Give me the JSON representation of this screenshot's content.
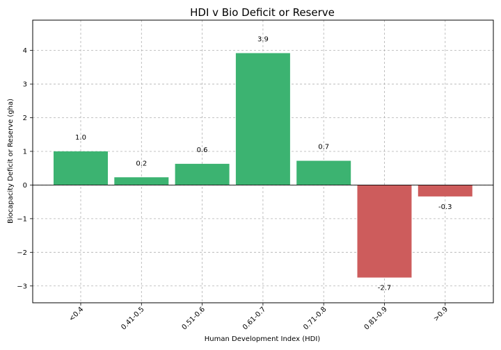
{
  "chart_data": {
    "type": "bar",
    "title": "HDI v Bio Deficit or Reserve",
    "xlabel": "Human Development Index (HDI)",
    "ylabel": "Biocapacity Deficit or Reserve (gha)",
    "categories": [
      "<0.4",
      "0.41-0.5",
      "0.51-0.6",
      "0.61-0.7",
      "0.71-0.8",
      "0.81-0.9",
      ">0.9"
    ],
    "values": [
      1.0,
      0.23,
      0.63,
      3.92,
      0.72,
      -2.75,
      -0.34
    ],
    "data_labels": [
      "1.0",
      "0.2",
      "0.6",
      "3.9",
      "0.7",
      "-2.7",
      "-0.3"
    ],
    "ylim": [
      -3.5,
      4.9
    ],
    "yticks": [
      -3,
      -2,
      -1,
      0,
      1,
      2,
      3,
      4
    ],
    "ytick_labels": [
      "−3",
      "−2",
      "−1",
      "0",
      "1",
      "2",
      "3",
      "4"
    ],
    "grid": true,
    "colors": {
      "positive": "#3cb371",
      "negative": "#cd5c5c"
    }
  }
}
